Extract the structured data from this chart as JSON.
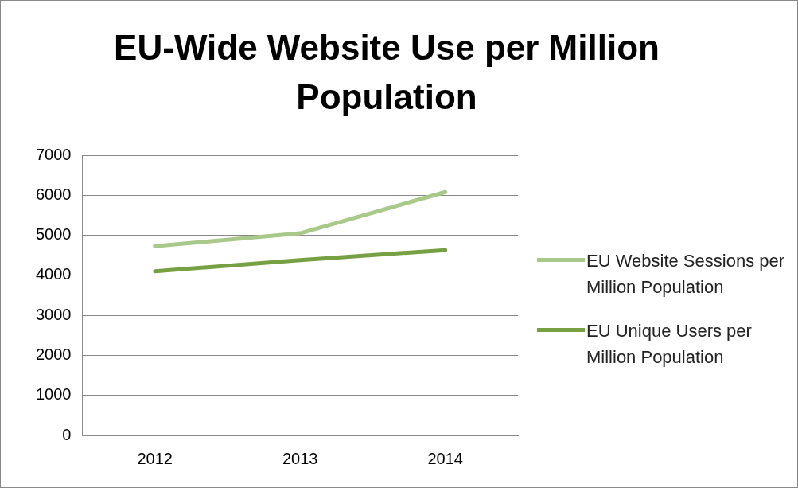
{
  "chart_data": {
    "type": "line",
    "title": "EU-Wide Website Use per Million Population",
    "categories": [
      "2012",
      "2013",
      "2014"
    ],
    "series": [
      {
        "name": "EU Website Sessions per Million Population",
        "color": "#a9c98a",
        "values": [
          4730,
          5050,
          6080
        ]
      },
      {
        "name": "EU Unique Users per Million Population",
        "color": "#77a043",
        "values": [
          4100,
          4380,
          4630
        ]
      }
    ],
    "ylim": [
      0,
      7000
    ],
    "yticks": [
      0,
      1000,
      2000,
      3000,
      4000,
      5000,
      6000,
      7000
    ],
    "grid": "y",
    "legend": "right",
    "marker": "none",
    "line_style": "solid"
  }
}
